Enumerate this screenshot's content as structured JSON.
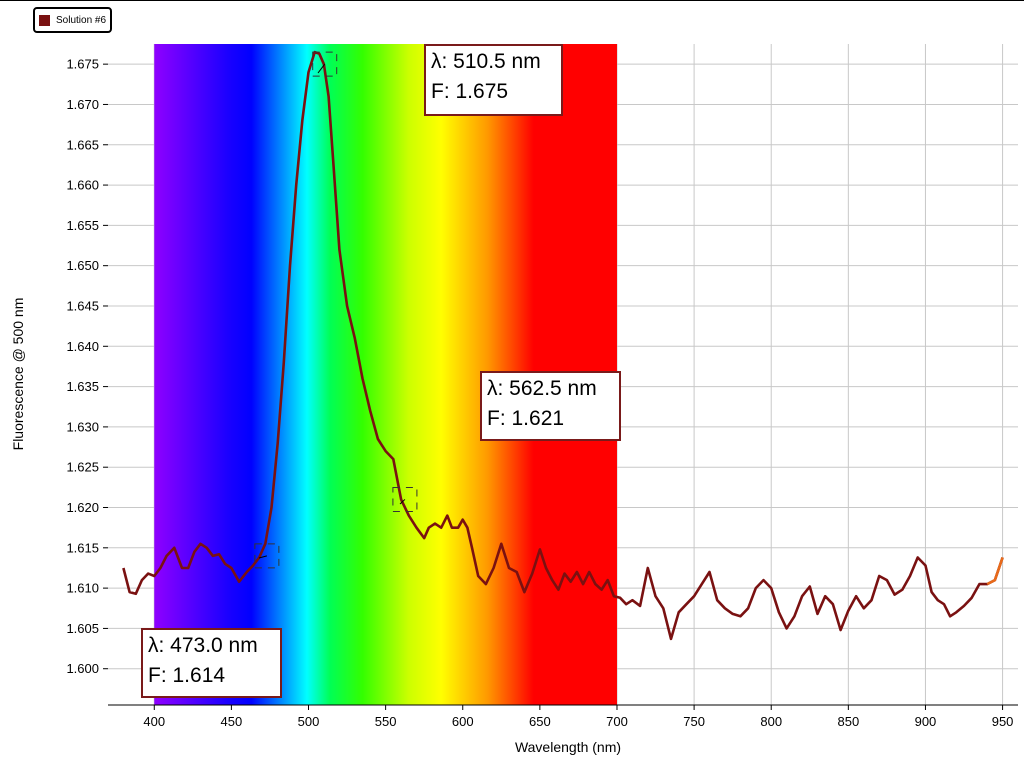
{
  "legend": {
    "label": "Solution #6",
    "swatch_color": "#7a1111"
  },
  "chart_data": {
    "type": "line",
    "xlabel": "Wavelength (nm)",
    "ylabel": "Fluorescence @ 500 nm",
    "xlim": [
      370,
      960
    ],
    "ylim": [
      1.5955,
      1.6775
    ],
    "x_ticks": [
      "400",
      "450",
      "500",
      "550",
      "600",
      "650",
      "700",
      "750",
      "800",
      "850",
      "900",
      "950"
    ],
    "y_ticks": [
      "1.600",
      "1.605",
      "1.610",
      "1.615",
      "1.620",
      "1.625",
      "1.630",
      "1.635",
      "1.640",
      "1.645",
      "1.650",
      "1.655",
      "1.660",
      "1.665",
      "1.670",
      "1.675"
    ],
    "grid": true,
    "spectrum_band": [
      400,
      700
    ],
    "series": [
      {
        "name": "Solution #6",
        "color": "#7a1111",
        "x": [
          380,
          384,
          388,
          392,
          396,
          400,
          404,
          408,
          413,
          418,
          422,
          426,
          430,
          434,
          438,
          442,
          446,
          450,
          455,
          460,
          464,
          468,
          472,
          476,
          480,
          484,
          488,
          492,
          496,
          500,
          504,
          507,
          510,
          513,
          516,
          520,
          525,
          530,
          535,
          540,
          545,
          550,
          555,
          560,
          565,
          570,
          575,
          578,
          582,
          586,
          590,
          593,
          597,
          600,
          603,
          606,
          610,
          615,
          620,
          625,
          630,
          635,
          640,
          645,
          650,
          654,
          658,
          662,
          666,
          670,
          674,
          678,
          682,
          686,
          690,
          694,
          698,
          702,
          706,
          710,
          715,
          720,
          725,
          730,
          735,
          740,
          745,
          750,
          755,
          760,
          765,
          770,
          775,
          780,
          785,
          790,
          795,
          800,
          805,
          810,
          815,
          820,
          825,
          830,
          835,
          840,
          845,
          850,
          855,
          860,
          865,
          870,
          875,
          880,
          885,
          890,
          895,
          900,
          904,
          908,
          912,
          916,
          920,
          925,
          930,
          935,
          940,
          945,
          950
        ],
        "y": [
          1.6125,
          1.6095,
          1.6093,
          1.611,
          1.6118,
          1.6115,
          1.6125,
          1.614,
          1.615,
          1.6125,
          1.6125,
          1.6145,
          1.6155,
          1.615,
          1.614,
          1.6142,
          1.613,
          1.6125,
          1.6108,
          1.612,
          1.6128,
          1.6138,
          1.6155,
          1.62,
          1.628,
          1.638,
          1.65,
          1.66,
          1.668,
          1.674,
          1.6765,
          1.6763,
          1.675,
          1.671,
          1.663,
          1.652,
          1.645,
          1.641,
          1.636,
          1.632,
          1.6285,
          1.627,
          1.626,
          1.621,
          1.619,
          1.6175,
          1.6162,
          1.6175,
          1.618,
          1.6175,
          1.619,
          1.6175,
          1.6175,
          1.6185,
          1.6175,
          1.615,
          1.6115,
          1.6105,
          1.6125,
          1.6155,
          1.6125,
          1.612,
          1.6095,
          1.6118,
          1.6148,
          1.6125,
          1.611,
          1.6098,
          1.6118,
          1.6108,
          1.612,
          1.6105,
          1.612,
          1.6105,
          1.6098,
          1.611,
          1.609,
          1.6088,
          1.608,
          1.6085,
          1.6078,
          1.6125,
          1.609,
          1.6075,
          1.6037,
          1.607,
          1.608,
          1.609,
          1.6105,
          1.612,
          1.6085,
          1.6075,
          1.6068,
          1.6065,
          1.6075,
          1.61,
          1.611,
          1.61,
          1.607,
          1.605,
          1.6065,
          1.609,
          1.6102,
          1.6068,
          1.609,
          1.608,
          1.6048,
          1.6072,
          1.609,
          1.6075,
          1.6085,
          1.6115,
          1.611,
          1.6092,
          1.6098,
          1.6115,
          1.6138,
          1.6128,
          1.6095,
          1.6085,
          1.608,
          1.6065,
          1.607,
          1.6078,
          1.6088,
          1.6105,
          1.6105,
          1.611,
          1.6138
        ]
      }
    ],
    "annotations": [
      {
        "x": 510.5,
        "y": 1.675,
        "lambda_label": "λ: 510.5 nm",
        "f_label": "F: 1.675"
      },
      {
        "x": 562.5,
        "y": 1.621,
        "lambda_label": "λ: 562.5 nm",
        "f_label": "F: 1.621"
      },
      {
        "x": 473.0,
        "y": 1.614,
        "lambda_label": "λ: 473.0 nm",
        "f_label": "F: 1.614"
      }
    ]
  }
}
